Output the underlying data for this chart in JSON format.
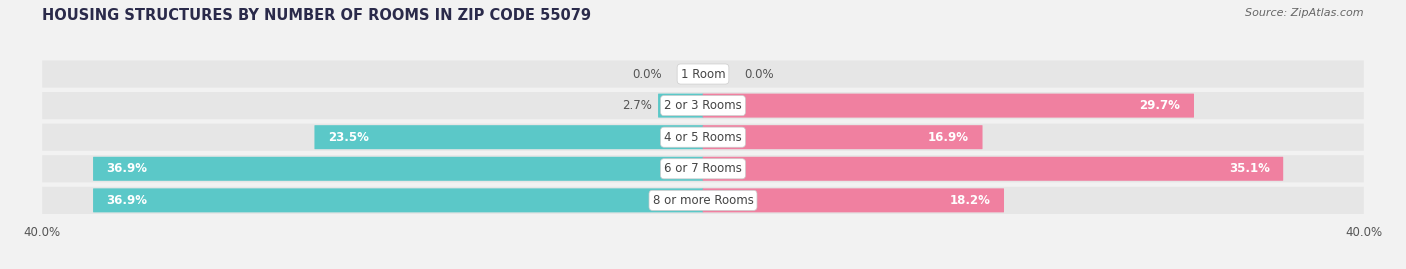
{
  "title": "HOUSING STRUCTURES BY NUMBER OF ROOMS IN ZIP CODE 55079",
  "source": "Source: ZipAtlas.com",
  "categories": [
    "1 Room",
    "2 or 3 Rooms",
    "4 or 5 Rooms",
    "6 or 7 Rooms",
    "8 or more Rooms"
  ],
  "owner_values": [
    0.0,
    2.7,
    23.5,
    36.9,
    36.9
  ],
  "renter_values": [
    0.0,
    29.7,
    16.9,
    35.1,
    18.2
  ],
  "owner_color": "#5bc8c8",
  "renter_color": "#f080a0",
  "background_color": "#f2f2f2",
  "bar_bg_color": "#e6e6e6",
  "xlim": 40.0,
  "bar_height": 0.72,
  "label_fontsize": 8.5,
  "title_fontsize": 10.5,
  "source_fontsize": 8.0,
  "axis_label_fontsize": 8.5,
  "owner_label_threshold": 5.0,
  "renter_label_threshold": 5.0
}
